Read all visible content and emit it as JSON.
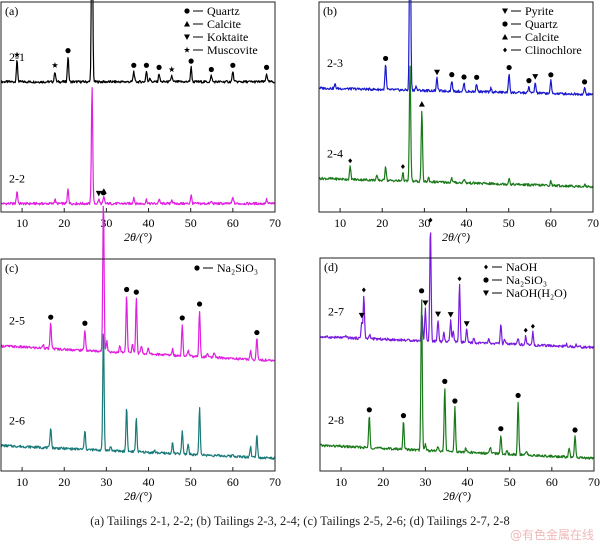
{
  "figure": {
    "caption": "(a) Tailings 2-1, 2-2; (b) Tailings 2-3, 2-4; (c) Tailings 2-5, 2-6; (d) Tailings 2-7, 2-8",
    "watermark": "@有色金属在线"
  },
  "chart_data": [
    {
      "type": "line",
      "panel_label": "(a)",
      "xlabel": "2θ/(°)",
      "ylabel": "",
      "xlim": [
        5,
        70
      ],
      "xticks": [
        10,
        20,
        30,
        40,
        50,
        60,
        70
      ],
      "grid": false,
      "legend_placement": "top-right",
      "legend": [
        {
          "marker": "circle",
          "label": "Quartz"
        },
        {
          "marker": "triangle-up",
          "label": "Calcite"
        },
        {
          "marker": "triangle-down",
          "label": "Koktaite"
        },
        {
          "marker": "star",
          "label": "Muscovite"
        }
      ],
      "series": [
        {
          "name": "2-1",
          "color": "#000000",
          "offset": 0.62,
          "baseline_slope": 0.0,
          "peaks": [
            [
              8.8,
              0.1
            ],
            [
              17.8,
              0.05
            ],
            [
              20.9,
              0.12
            ],
            [
              26.6,
              0.92
            ],
            [
              36.5,
              0.05
            ],
            [
              39.5,
              0.05
            ],
            [
              40.3,
              0.02
            ],
            [
              42.5,
              0.04
            ],
            [
              45.5,
              0.03
            ],
            [
              50.1,
              0.07
            ],
            [
              54.9,
              0.03
            ],
            [
              60.0,
              0.05
            ],
            [
              68.0,
              0.04
            ]
          ],
          "markers": [
            [
              8.8,
              "star"
            ],
            [
              17.8,
              "star"
            ],
            [
              20.9,
              "circle"
            ],
            [
              26.6,
              "circle"
            ],
            [
              36.5,
              "circle"
            ],
            [
              39.5,
              "circle"
            ],
            [
              42.5,
              "circle"
            ],
            [
              45.5,
              "star"
            ],
            [
              50.1,
              "circle"
            ],
            [
              54.9,
              "circle"
            ],
            [
              60.0,
              "circle"
            ],
            [
              68.0,
              "circle"
            ]
          ]
        },
        {
          "name": "2-2",
          "color": "#e020e0",
          "offset": 0.04,
          "baseline_slope": 0.0,
          "peaks": [
            [
              8.8,
              0.06
            ],
            [
              17.8,
              0.02
            ],
            [
              20.9,
              0.07
            ],
            [
              26.6,
              0.56
            ],
            [
              28.2,
              0.02
            ],
            [
              29.4,
              0.03
            ],
            [
              36.5,
              0.03
            ],
            [
              39.5,
              0.02
            ],
            [
              42.5,
              0.02
            ],
            [
              45.5,
              0.02
            ],
            [
              50.1,
              0.04
            ],
            [
              54.9,
              0.01
            ],
            [
              60.0,
              0.03
            ],
            [
              68.0,
              0.02
            ]
          ],
          "markers": [
            [
              28.2,
              "triangle-down"
            ],
            [
              29.4,
              "triangle-up"
            ]
          ]
        }
      ]
    },
    {
      "type": "line",
      "panel_label": "(b)",
      "xlabel": "2θ/(°)",
      "ylabel": "",
      "xlim": [
        5,
        70
      ],
      "xticks": [
        10,
        20,
        30,
        40,
        50,
        60,
        70
      ],
      "grid": false,
      "legend_placement": "top-right",
      "legend": [
        {
          "marker": "triangle-down",
          "label": "Pyrite"
        },
        {
          "marker": "circle",
          "label": "Quartz"
        },
        {
          "marker": "triangle-up",
          "label": "Calcite"
        },
        {
          "marker": "diamond",
          "label": "Clinochlore"
        }
      ],
      "series": [
        {
          "name": "2-3",
          "color": "#1a1acc",
          "offset": 0.56,
          "baseline_slope": 0.03,
          "peaks": [
            [
              8.8,
              0.02
            ],
            [
              20.8,
              0.12
            ],
            [
              26.6,
              0.95
            ],
            [
              28.0,
              0.02
            ],
            [
              33.0,
              0.06
            ],
            [
              36.5,
              0.05
            ],
            [
              39.4,
              0.04
            ],
            [
              42.4,
              0.04
            ],
            [
              45.8,
              0.02
            ],
            [
              50.1,
              0.09
            ],
            [
              54.8,
              0.03
            ],
            [
              56.3,
              0.05
            ],
            [
              60.0,
              0.06
            ],
            [
              68.0,
              0.03
            ]
          ],
          "markers": [
            [
              20.8,
              "circle"
            ],
            [
              26.6,
              "circle"
            ],
            [
              33.0,
              "triangle-down"
            ],
            [
              36.5,
              "circle"
            ],
            [
              39.4,
              "circle"
            ],
            [
              42.4,
              "circle"
            ],
            [
              50.1,
              "circle"
            ],
            [
              54.8,
              "circle"
            ],
            [
              56.3,
              "triangle-down"
            ],
            [
              60.0,
              "circle"
            ],
            [
              68.0,
              "circle"
            ]
          ]
        },
        {
          "name": "2-4",
          "color": "#1a7a1a",
          "offset": 0.12,
          "baseline_slope": 0.04,
          "peaks": [
            [
              12.4,
              0.06
            ],
            [
              18.7,
              0.02
            ],
            [
              20.8,
              0.07
            ],
            [
              24.9,
              0.04
            ],
            [
              26.6,
              0.56
            ],
            [
              29.4,
              0.34
            ],
            [
              31.0,
              0.02
            ],
            [
              36.5,
              0.02
            ],
            [
              39.4,
              0.02
            ],
            [
              50.1,
              0.03
            ],
            [
              60.0,
              0.02
            ],
            [
              68.0,
              0.01
            ]
          ],
          "markers": [
            [
              12.4,
              "diamond"
            ],
            [
              24.9,
              "diamond"
            ],
            [
              29.4,
              "triangle-up"
            ]
          ]
        }
      ]
    },
    {
      "type": "line",
      "panel_label": "(c)",
      "xlabel": "2θ/(°)",
      "ylabel": "",
      "xlim": [
        5,
        70
      ],
      "xticks": [
        10,
        20,
        30,
        40,
        50,
        60,
        70
      ],
      "grid": false,
      "legend_placement": "top-right",
      "legend": [
        {
          "marker": "circle",
          "label": "Na₂SiO₃"
        }
      ],
      "series": [
        {
          "name": "2-5",
          "color": "#e020e0",
          "offset": 0.52,
          "baseline_slope": 0.07,
          "peaks": [
            [
              15.0,
              0.02
            ],
            [
              16.8,
              0.12
            ],
            [
              24.9,
              0.1
            ],
            [
              29.3,
              0.72
            ],
            [
              30.1,
              0.05
            ],
            [
              33.2,
              0.03
            ],
            [
              34.8,
              0.27
            ],
            [
              36.2,
              0.04
            ],
            [
              37.1,
              0.26
            ],
            [
              38.3,
              0.04
            ],
            [
              39.9,
              0.03
            ],
            [
              45.7,
              0.03
            ],
            [
              48.0,
              0.15
            ],
            [
              49.4,
              0.03
            ],
            [
              52.1,
              0.22
            ],
            [
              54.0,
              0.02
            ],
            [
              55.6,
              0.02
            ],
            [
              64.2,
              0.04
            ],
            [
              65.7,
              0.1
            ]
          ],
          "markers": [
            [
              16.8,
              "circle"
            ],
            [
              24.9,
              "circle"
            ],
            [
              29.3,
              "circle"
            ],
            [
              34.8,
              "circle"
            ],
            [
              37.1,
              "circle"
            ],
            [
              48.0,
              "circle"
            ],
            [
              52.1,
              "circle"
            ],
            [
              65.7,
              "circle"
            ]
          ]
        },
        {
          "name": "2-6",
          "color": "#1a7a7a",
          "offset": 0.06,
          "baseline_slope": 0.06,
          "peaks": [
            [
              16.8,
              0.1
            ],
            [
              24.9,
              0.09
            ],
            [
              29.3,
              0.58
            ],
            [
              31.0,
              0.02
            ],
            [
              34.8,
              0.21
            ],
            [
              37.1,
              0.16
            ],
            [
              41.4,
              0.01
            ],
            [
              45.7,
              0.05
            ],
            [
              48.0,
              0.11
            ],
            [
              49.4,
              0.05
            ],
            [
              52.1,
              0.22
            ],
            [
              60.0,
              0.01
            ],
            [
              64.2,
              0.05
            ],
            [
              65.7,
              0.11
            ]
          ],
          "markers": []
        }
      ]
    },
    {
      "type": "line",
      "panel_label": "(d)",
      "xlabel": "2θ/(°)",
      "ylabel": "",
      "xlim": [
        5,
        70
      ],
      "xticks": [
        10,
        20,
        30,
        40,
        50,
        60,
        70
      ],
      "grid": false,
      "legend_placement": "top-right",
      "legend": [
        {
          "marker": "diamond",
          "label": "NaOH"
        },
        {
          "marker": "circle",
          "label": "Na₂SiO₃"
        },
        {
          "marker": "triangle-down",
          "label": "NaOH(H₂O)"
        }
      ],
      "series": [
        {
          "name": "2-7",
          "color": "#7a1ae0",
          "offset": 0.58,
          "baseline_slope": 0.05,
          "peaks": [
            [
              11.2,
              0.01
            ],
            [
              14.9,
              0.08
            ],
            [
              15.4,
              0.2
            ],
            [
              16.8,
              0.02
            ],
            [
              29.2,
              0.13
            ],
            [
              30.0,
              0.15
            ],
            [
              31.2,
              0.54
            ],
            [
              33.0,
              0.1
            ],
            [
              34.4,
              0.04
            ],
            [
              36.0,
              0.1
            ],
            [
              36.6,
              0.05
            ],
            [
              38.1,
              0.27
            ],
            [
              39.8,
              0.06
            ],
            [
              41.5,
              0.02
            ],
            [
              45.0,
              0.02
            ],
            [
              47.9,
              0.09
            ],
            [
              48.8,
              0.02
            ],
            [
              52.0,
              0.03
            ],
            [
              53.8,
              0.04
            ],
            [
              55.5,
              0.06
            ],
            [
              63.5,
              0.01
            ],
            [
              65.7,
              0.01
            ]
          ],
          "markers": [
            [
              14.9,
              "triangle-down"
            ],
            [
              15.4,
              "diamond"
            ],
            [
              30.0,
              "triangle-down"
            ],
            [
              31.2,
              "diamond"
            ],
            [
              33.0,
              "triangle-down"
            ],
            [
              36.0,
              "triangle-down"
            ],
            [
              38.1,
              "diamond"
            ],
            [
              39.8,
              "triangle-down"
            ],
            [
              53.8,
              "diamond"
            ],
            [
              55.5,
              "diamond"
            ]
          ]
        },
        {
          "name": "2-8",
          "color": "#1a7a1a",
          "offset": 0.06,
          "baseline_slope": 0.06,
          "peaks": [
            [
              16.7,
              0.15
            ],
            [
              24.8,
              0.13
            ],
            [
              29.1,
              0.72
            ],
            [
              30.0,
              0.03
            ],
            [
              33.0,
              0.02
            ],
            [
              34.6,
              0.3
            ],
            [
              37.0,
              0.21
            ],
            [
              39.6,
              0.02
            ],
            [
              45.4,
              0.03
            ],
            [
              47.9,
              0.09
            ],
            [
              49.4,
              0.02
            ],
            [
              52.0,
              0.25
            ],
            [
              54.0,
              0.02
            ],
            [
              64.1,
              0.04
            ],
            [
              65.5,
              0.1
            ]
          ],
          "markers": [
            [
              16.7,
              "circle"
            ],
            [
              24.8,
              "circle"
            ],
            [
              29.1,
              "circle"
            ],
            [
              34.6,
              "circle"
            ],
            [
              37.0,
              "circle"
            ],
            [
              47.9,
              "circle"
            ],
            [
              52.0,
              "circle"
            ],
            [
              65.5,
              "circle"
            ]
          ]
        }
      ]
    }
  ]
}
